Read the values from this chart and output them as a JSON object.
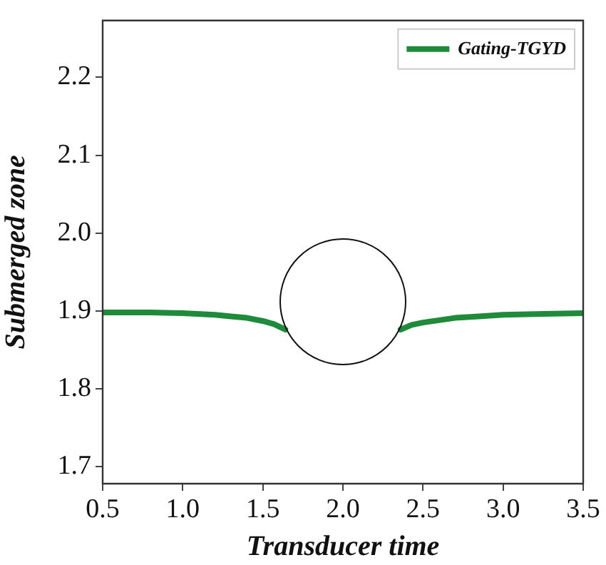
{
  "chart_data": {
    "type": "line",
    "xlabel": "Transducer time",
    "ylabel": "Submerged zone",
    "x": [
      0.5,
      0.8,
      1.0,
      1.2,
      1.3,
      1.4,
      1.5,
      1.57,
      1.64,
      2.0,
      2.36,
      2.43,
      2.5,
      2.6,
      2.7,
      2.85,
      3.0,
      3.2,
      3.5
    ],
    "series": [
      {
        "name": "Gating-TGYD",
        "color": "#1e8a3a",
        "values": [
          1.898,
          1.898,
          1.897,
          1.895,
          1.893,
          1.891,
          1.887,
          1.883,
          1.876,
          null,
          1.876,
          1.882,
          1.885,
          1.888,
          1.891,
          1.893,
          1.895,
          1.896,
          1.897
        ]
      }
    ],
    "xlim": [
      0.5,
      3.5
    ],
    "xticks": [
      0.5,
      {
        "value": 1,
        "label": "1.0"
      },
      1.5,
      {
        "value": 2,
        "label": "2.0"
      },
      2.5,
      {
        "value": 3,
        "label": "3.0"
      },
      3.5
    ],
    "ylim": [
      1.678,
      2.273
    ],
    "yticks": [
      1.7,
      1.8,
      1.9,
      {
        "value": 2,
        "label": "2.0"
      },
      2.1,
      2.2
    ],
    "grid": false,
    "legend": "top right",
    "marker": "none",
    "line_style": "solid"
  }
}
